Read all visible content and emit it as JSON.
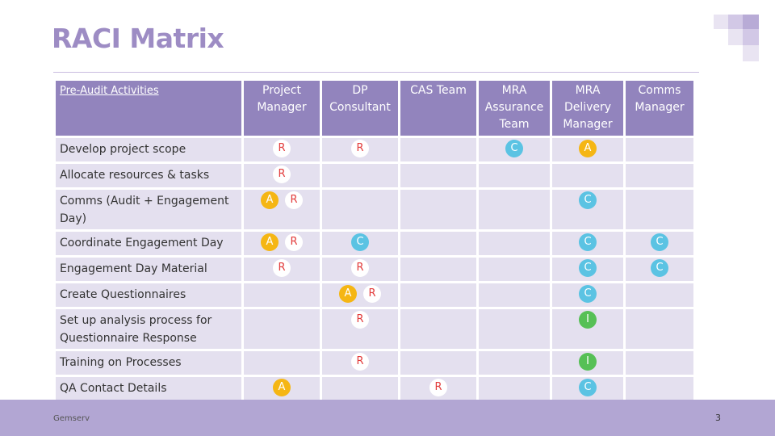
{
  "title": "RACI Matrix",
  "header": {
    "activity": "Pre-Audit Activities",
    "roles": [
      "Project Manager",
      "DP Consultant",
      "CAS Team",
      "MRA Assurance Team",
      "MRA Delivery Manager",
      "Comms Manager"
    ]
  },
  "rows": [
    {
      "activity": "Develop project scope",
      "cells": [
        [
          "R"
        ],
        [
          "R"
        ],
        [],
        [
          "C"
        ],
        [
          "A"
        ],
        []
      ]
    },
    {
      "activity": "Allocate resources & tasks",
      "cells": [
        [
          "R"
        ],
        [],
        [],
        [],
        [],
        []
      ]
    },
    {
      "activity": "Comms (Audit + Engagement Day)",
      "cells": [
        [
          "A",
          "R"
        ],
        [],
        [],
        [],
        [
          "C"
        ],
        []
      ]
    },
    {
      "activity": "Coordinate Engagement Day",
      "cells": [
        [
          "A",
          "R"
        ],
        [
          "C"
        ],
        [],
        [],
        [
          "C"
        ],
        [
          "C"
        ]
      ]
    },
    {
      "activity": "Engagement Day Material",
      "cells": [
        [
          "R"
        ],
        [
          "R"
        ],
        [],
        [],
        [
          "C"
        ],
        [
          "C"
        ]
      ]
    },
    {
      "activity": "Create Questionnaires",
      "cells": [
        [],
        [
          "A",
          "R"
        ],
        [],
        [],
        [
          "C"
        ],
        []
      ]
    },
    {
      "activity": "Set up analysis process for Questionnaire Response",
      "cells": [
        [],
        [
          "R"
        ],
        [],
        [],
        [
          "I"
        ],
        []
      ]
    },
    {
      "activity": "Training on Processes",
      "cells": [
        [],
        [
          "R"
        ],
        [],
        [],
        [
          "I"
        ],
        []
      ]
    },
    {
      "activity": "QA Contact Details",
      "cells": [
        [
          "A"
        ],
        [],
        [
          "R"
        ],
        [],
        [
          "C"
        ],
        []
      ]
    }
  ],
  "colors": {
    "R": "#ffffff",
    "C": "#5bc3e3",
    "A": "#f5b614",
    "I": "#56c056",
    "header": "#9284bd",
    "rowfill": "#e4e0ef",
    "footer": "#b2a6d3"
  },
  "footer": {
    "company": "Gemserv",
    "page": "3"
  }
}
